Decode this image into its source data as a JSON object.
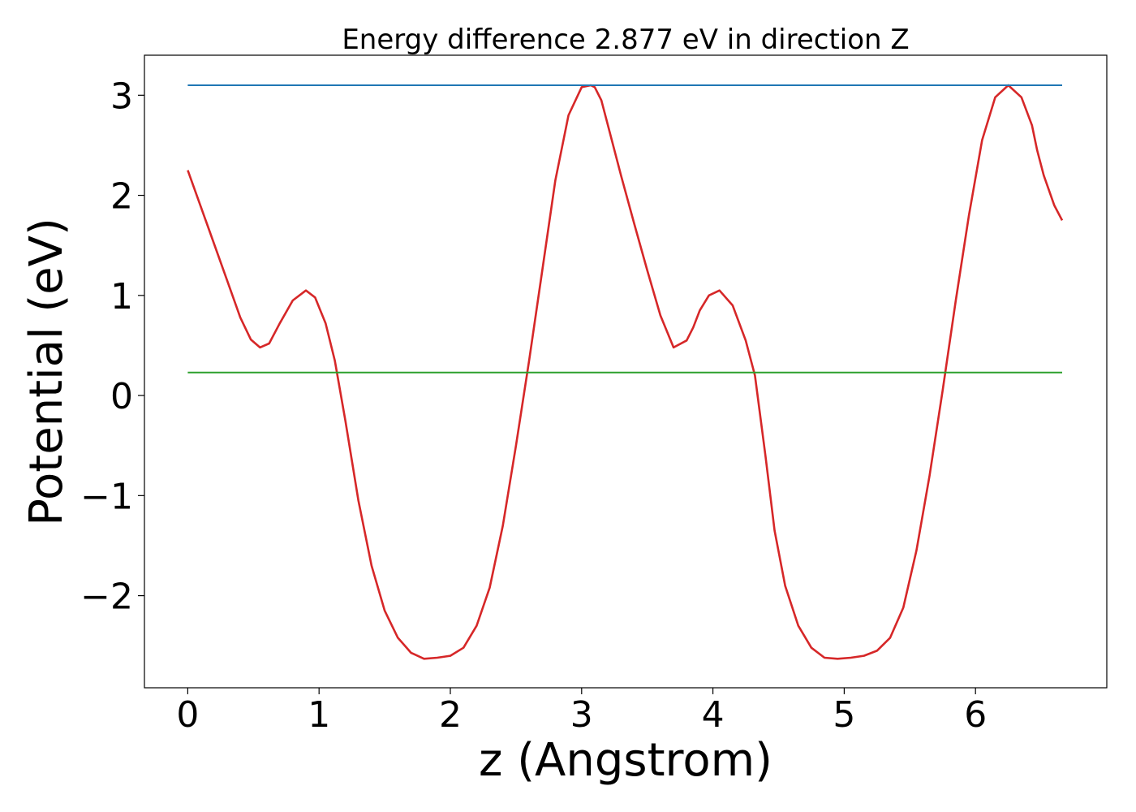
{
  "chart_data": {
    "type": "line",
    "title": "Energy difference 2.877 eV in direction Z",
    "xlabel": "z (Angstrom)",
    "ylabel": "Potential (eV)",
    "xlim": [
      -0.33,
      7.0
    ],
    "ylim": [
      -2.92,
      3.4
    ],
    "x_ticks": [
      0,
      1,
      2,
      3,
      4,
      5,
      6
    ],
    "x_tick_labels": [
      "0",
      "1",
      "2",
      "3",
      "4",
      "5",
      "6"
    ],
    "y_ticks": [
      -2,
      -1,
      0,
      1,
      2,
      3
    ],
    "y_tick_labels": [
      "−2",
      "−1",
      "0",
      "1",
      "2",
      "3"
    ],
    "grid": false,
    "series": [
      {
        "color": "#d62728",
        "x": [
          0,
          0.15,
          0.3,
          0.4,
          0.48,
          0.55,
          0.62,
          0.7,
          0.8,
          0.9,
          0.97,
          1.05,
          1.12,
          1.2,
          1.3,
          1.4,
          1.5,
          1.6,
          1.7,
          1.8,
          1.9,
          2.0,
          2.1,
          2.2,
          2.3,
          2.4,
          2.5,
          2.6,
          2.7,
          2.8,
          2.9,
          3.0,
          3.07,
          3.1,
          3.15,
          3.2,
          3.3,
          3.4,
          3.5,
          3.6,
          3.7,
          3.8,
          3.85,
          3.9,
          3.97,
          4.05,
          4.15,
          4.25,
          4.32,
          4.4,
          4.47,
          4.55,
          4.65,
          4.75,
          4.85,
          4.95,
          5.05,
          5.15,
          5.25,
          5.35,
          5.45,
          5.55,
          5.65,
          5.75,
          5.85,
          5.95,
          6.05,
          6.15,
          6.25,
          6.35,
          6.43,
          6.47,
          6.52,
          6.6,
          6.66
        ],
        "y": [
          2.25,
          1.7,
          1.15,
          0.78,
          0.56,
          0.48,
          0.52,
          0.72,
          0.95,
          1.05,
          0.98,
          0.72,
          0.35,
          -0.25,
          -1.05,
          -1.7,
          -2.15,
          -2.42,
          -2.57,
          -2.63,
          -2.62,
          -2.6,
          -2.52,
          -2.3,
          -1.92,
          -1.3,
          -0.5,
          0.35,
          1.25,
          2.15,
          2.8,
          3.08,
          3.1,
          3.08,
          2.95,
          2.7,
          2.2,
          1.72,
          1.25,
          0.8,
          0.48,
          0.55,
          0.68,
          0.85,
          1.0,
          1.05,
          0.9,
          0.55,
          0.2,
          -0.6,
          -1.35,
          -1.9,
          -2.3,
          -2.52,
          -2.62,
          -2.63,
          -2.62,
          -2.6,
          -2.55,
          -2.42,
          -2.12,
          -1.55,
          -0.8,
          0.05,
          0.95,
          1.8,
          2.55,
          2.98,
          3.1,
          2.98,
          2.7,
          2.45,
          2.2,
          1.9,
          1.75
        ]
      },
      {
        "color": "#1f77b4",
        "x": [
          0,
          6.66
        ],
        "y": [
          3.1,
          3.1
        ]
      },
      {
        "color": "#2ca02c",
        "x": [
          0,
          6.66
        ],
        "y": [
          0.23,
          0.23
        ]
      }
    ]
  }
}
